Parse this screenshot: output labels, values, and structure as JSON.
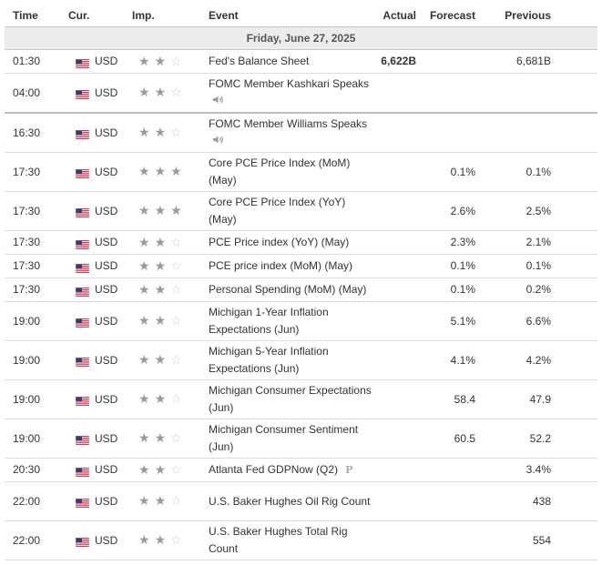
{
  "headers": {
    "time": "Time",
    "cur": "Cur.",
    "imp": "Imp.",
    "event": "Event",
    "actual": "Actual",
    "forecast": "Forecast",
    "previous": "Previous"
  },
  "date_label": "Friday, June 27, 2025",
  "rows": [
    {
      "time": "01:30",
      "cur": "USD",
      "imp": 2,
      "event": "Fed's Balance Sheet",
      "actual": "6,622B",
      "forecast": "",
      "previous": "6,681B"
    },
    {
      "time": "04:00",
      "cur": "USD",
      "imp": 2,
      "event": "FOMC Member Kashkari Speaks",
      "actual": "",
      "forecast": "",
      "previous": ""
    },
    {
      "time": "16:30",
      "cur": "USD",
      "imp": 2,
      "event": "FOMC Member Williams Speaks",
      "actual": "",
      "forecast": "",
      "previous": ""
    },
    {
      "time": "17:30",
      "cur": "USD",
      "imp": 3,
      "event": "Core PCE Price Index (MoM) (May)",
      "actual": "",
      "forecast": "0.1%",
      "previous": "0.1%"
    },
    {
      "time": "17:30",
      "cur": "USD",
      "imp": 3,
      "event": "Core PCE Price Index (YoY) (May)",
      "actual": "",
      "forecast": "2.6%",
      "previous": "2.5%"
    },
    {
      "time": "17:30",
      "cur": "USD",
      "imp": 2,
      "event": "PCE Price index (YoY) (May)",
      "actual": "",
      "forecast": "2.3%",
      "previous": "2.1%"
    },
    {
      "time": "17:30",
      "cur": "USD",
      "imp": 2,
      "event": "PCE price index (MoM) (May)",
      "actual": "",
      "forecast": "0.1%",
      "previous": "0.1%"
    },
    {
      "time": "17:30",
      "cur": "USD",
      "imp": 2,
      "event": "Personal Spending (MoM) (May)",
      "actual": "",
      "forecast": "0.1%",
      "previous": "0.2%"
    },
    {
      "time": "19:00",
      "cur": "USD",
      "imp": 2,
      "event": "Michigan 1-Year Inflation Expectations (Jun)",
      "actual": "",
      "forecast": "5.1%",
      "previous": "6.6%"
    },
    {
      "time": "19:00",
      "cur": "USD",
      "imp": 2,
      "event": "Michigan 5-Year Inflation Expectations (Jun)",
      "actual": "",
      "forecast": "4.1%",
      "previous": "4.2%"
    },
    {
      "time": "19:00",
      "cur": "USD",
      "imp": 2,
      "event": "Michigan Consumer Expectations (Jun)",
      "actual": "",
      "forecast": "58.4",
      "previous": "47.9"
    },
    {
      "time": "19:00",
      "cur": "USD",
      "imp": 2,
      "event": "Michigan Consumer Sentiment (Jun)",
      "actual": "",
      "forecast": "60.5",
      "previous": "52.2"
    },
    {
      "time": "20:30",
      "cur": "USD",
      "imp": 2,
      "event": "Atlanta Fed GDPNow (Q2)",
      "actual": "",
      "forecast": "",
      "previous": "3.4%"
    },
    {
      "time": "22:00",
      "cur": "USD",
      "imp": 2,
      "event": "U.S. Baker Hughes Oil Rig Count",
      "actual": "",
      "forecast": "",
      "previous": "438"
    },
    {
      "time": "22:00",
      "cur": "USD",
      "imp": 2,
      "event": "U.S. Baker Hughes Total Rig Count",
      "actual": "",
      "forecast": "",
      "previous": "554"
    }
  ],
  "icons": {
    "speaker": "speaker-icon",
    "preliminary": "P",
    "flag": "us-flag-icon",
    "star": "star-icon"
  },
  "colors": {
    "star_on": "#9a9a9a",
    "star_off": "#cfcfcf",
    "date_bg": "#ececec"
  }
}
